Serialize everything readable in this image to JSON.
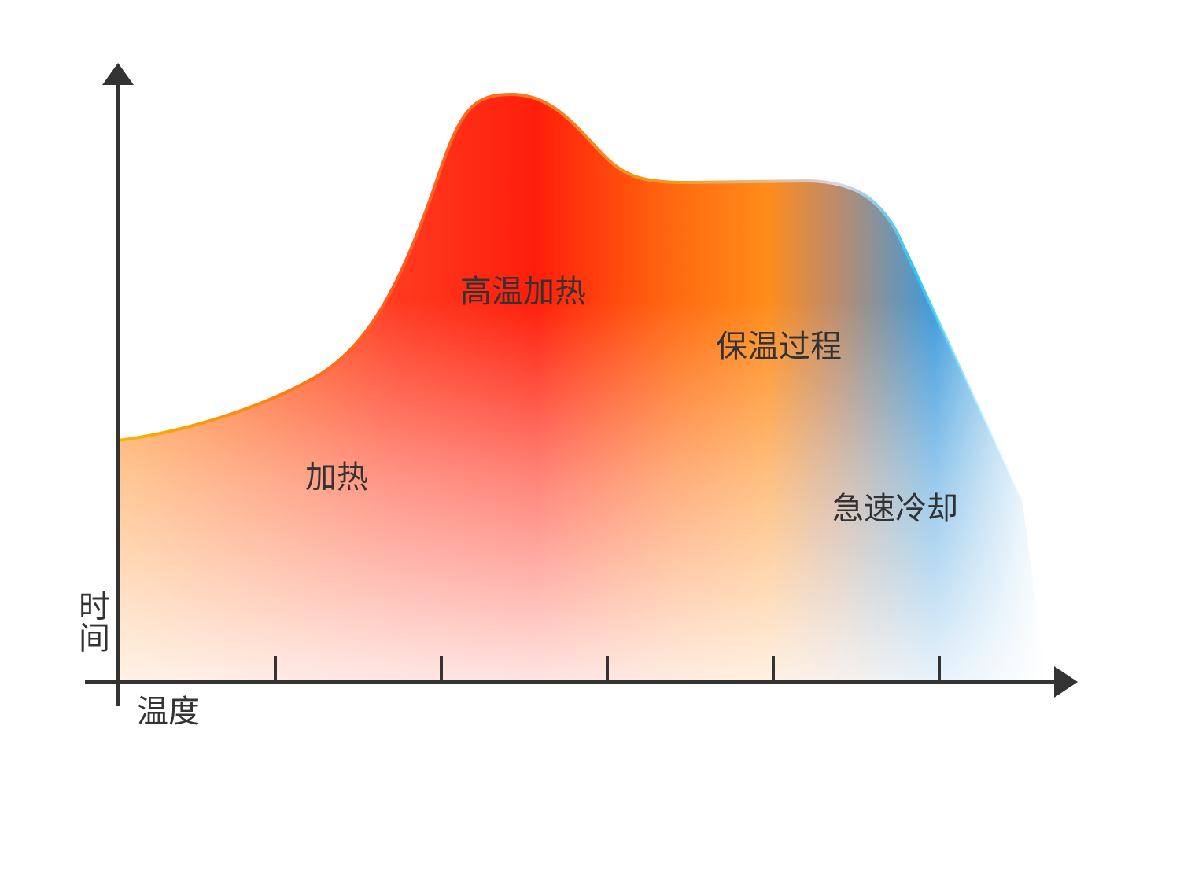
{
  "chart_data": {
    "type": "area",
    "title": "",
    "xlabel": "温度",
    "ylabel": "时间",
    "x_ticks": 5,
    "grid": false,
    "legend": "none",
    "annotations": [
      {
        "text": "加热"
      },
      {
        "text": "高温加热"
      },
      {
        "text": "保温过程"
      },
      {
        "text": "急速冷却"
      }
    ],
    "colors": {
      "axis": "#333333",
      "text": "#333333",
      "heating": "#ff9a3c",
      "high_heat": "#ff1e0a",
      "holding": "#ff8c1a",
      "cooling": "#3aa0e0",
      "outline_warm": "#f7b500",
      "outline_cool": "#29c3f5"
    }
  }
}
